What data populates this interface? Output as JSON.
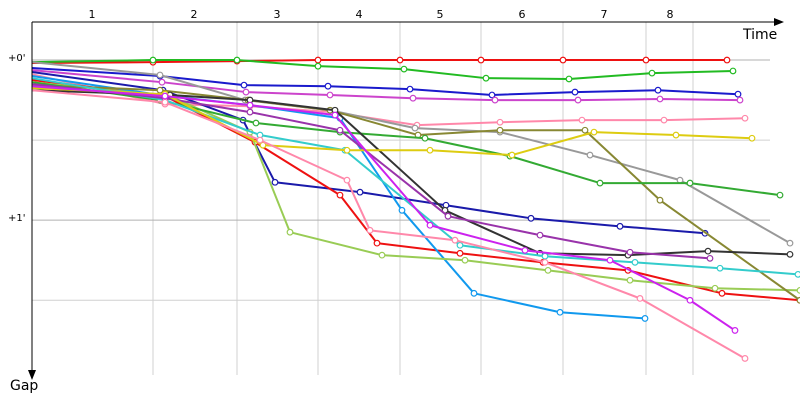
{
  "chart_data": {
    "type": "line",
    "x_label": "Time",
    "y_label": "Gap",
    "xlim": [
      0,
      768
    ],
    "ylim": [
      -14.25,
      118
    ],
    "y_inverted": true,
    "xticks": [
      {
        "value": 60,
        "label": "1"
      },
      {
        "value": 162,
        "label": "2"
      },
      {
        "value": 245,
        "label": "3"
      },
      {
        "value": 327,
        "label": "4"
      },
      {
        "value": 408,
        "label": "5"
      },
      {
        "value": 490,
        "label": "6"
      },
      {
        "value": 572,
        "label": "7"
      },
      {
        "value": 638,
        "label": "8"
      }
    ],
    "x_grid": [
      121,
      205,
      286,
      368,
      449,
      531,
      614,
      661
    ],
    "yticks": [
      {
        "value": 0,
        "label": "+0'"
      },
      {
        "value": 60,
        "label": "+1'"
      }
    ],
    "minor_yticks": [
      30,
      90
    ],
    "grid": true,
    "series": [
      {
        "color": "#ee1111",
        "x": [
          0,
          121,
          205,
          286,
          368,
          449,
          531,
          614,
          695
        ],
        "values": [
          1.1,
          0.8,
          0.4,
          0,
          0,
          0,
          0,
          0,
          0
        ]
      },
      {
        "color": "#22bb22",
        "x": [
          0,
          121,
          205,
          286,
          372,
          454,
          537,
          620,
          701
        ],
        "values": [
          0.8,
          0,
          0,
          2.3,
          3.4,
          6.8,
          7.1,
          4.9,
          4.1
        ]
      },
      {
        "color": "#1a1acc",
        "x": [
          0,
          128,
          212,
          296,
          378,
          460,
          543,
          626,
          706
        ],
        "values": [
          3,
          6,
          9.4,
          9.8,
          10.9,
          13.1,
          12,
          11.3,
          12.8
        ]
      },
      {
        "color": "#cc44cc",
        "x": [
          0,
          130,
          214,
          298,
          381,
          463,
          546,
          628,
          708
        ],
        "values": [
          3.8,
          8.3,
          12,
          13.1,
          14.3,
          15,
          15,
          14.6,
          15
        ]
      },
      {
        "color": "#ff88aa",
        "x": [
          0,
          133,
          218,
          300,
          385,
          468,
          550,
          632,
          713
        ],
        "values": [
          5.3,
          16.5,
          17.3,
          19.5,
          24.4,
          23.3,
          22.5,
          22.5,
          21.8
        ]
      },
      {
        "color": "#1a1aaa",
        "x": [
          0,
          131,
          211,
          243,
          328,
          414,
          499,
          588,
          673
        ],
        "values": [
          4.5,
          11.3,
          22.5,
          45.8,
          49.5,
          54.4,
          59.3,
          62.3,
          64.9
        ]
      },
      {
        "color": "#ee1111",
        "x": [
          0,
          133,
          223,
          308,
          345,
          428,
          511,
          596,
          690,
          768
        ],
        "values": [
          7.5,
          13.5,
          30.8,
          50.6,
          68.6,
          72.4,
          75.8,
          78.8,
          87.4,
          90
        ]
      },
      {
        "color": "#1199ee",
        "x": [
          0,
          128,
          218,
          308,
          370,
          442,
          528,
          613
        ],
        "values": [
          6,
          13.1,
          16.9,
          21.8,
          56.3,
          87.4,
          94.5,
          96.8
        ]
      },
      {
        "color": "#99cc55",
        "x": [
          0,
          138,
          218,
          258,
          350,
          433,
          516,
          598,
          683,
          768
        ],
        "values": [
          8.3,
          13.5,
          27,
          64.5,
          73.1,
          75,
          78.8,
          82.5,
          85.5,
          86.3
        ]
      },
      {
        "color": "#999999",
        "x": [
          0,
          128,
          213,
          298,
          383,
          468,
          558,
          648,
          758
        ],
        "values": [
          0.8,
          5.6,
          15,
          18.8,
          25.5,
          27,
          35.6,
          45,
          68.6
        ]
      },
      {
        "color": "#888833",
        "x": [
          0,
          128,
          216,
          298,
          386,
          468,
          553,
          628,
          768
        ],
        "values": [
          9.4,
          11.3,
          15,
          18.8,
          28.1,
          26.3,
          26.3,
          52.5,
          90
        ]
      },
      {
        "color": "#33aa33",
        "x": [
          0,
          128,
          224,
          308,
          393,
          478,
          568,
          658,
          748
        ],
        "values": [
          8.3,
          15,
          23.6,
          27,
          29.3,
          36,
          46.1,
          46.1,
          50.6
        ]
      },
      {
        "color": "#333333",
        "x": [
          0,
          138,
          218,
          303,
          413,
          508,
          596,
          676,
          758
        ],
        "values": [
          11.3,
          13.1,
          15,
          18.8,
          56.3,
          72.4,
          73.1,
          71.6,
          72.8
        ]
      },
      {
        "color": "#33cccc",
        "x": [
          0,
          133,
          228,
          313,
          428,
          513,
          603,
          688,
          766
        ],
        "values": [
          6.8,
          15,
          28.1,
          33.8,
          69.4,
          73.5,
          75.8,
          78,
          80.3
        ]
      },
      {
        "color": "#9933aa",
        "x": [
          0,
          133,
          218,
          308,
          416,
          508,
          598,
          678
        ],
        "values": [
          9,
          14.3,
          19.5,
          26.3,
          58.5,
          65.6,
          72,
          74.3
        ]
      },
      {
        "color": "#ddcc11",
        "x": [
          0,
          133,
          231,
          315,
          398,
          480,
          562,
          644,
          720
        ],
        "values": [
          10.5,
          12.8,
          31.9,
          33.8,
          33.8,
          35.6,
          27,
          28.1,
          29.3
        ]
      },
      {
        "color": "#ff88aa",
        "x": [
          0,
          133,
          228,
          315,
          338,
          423,
          513,
          608,
          713
        ],
        "values": [
          11.3,
          15.8,
          30,
          45,
          63.8,
          67.5,
          75.8,
          89.3,
          111.8
        ]
      },
      {
        "color": "#cc22ee",
        "x": [
          0,
          133,
          218,
          303,
          398,
          493,
          578,
          658,
          703
        ],
        "values": [
          9.8,
          13.5,
          16.9,
          20.6,
          61.9,
          71.3,
          75,
          90,
          101.3
        ]
      }
    ]
  }
}
